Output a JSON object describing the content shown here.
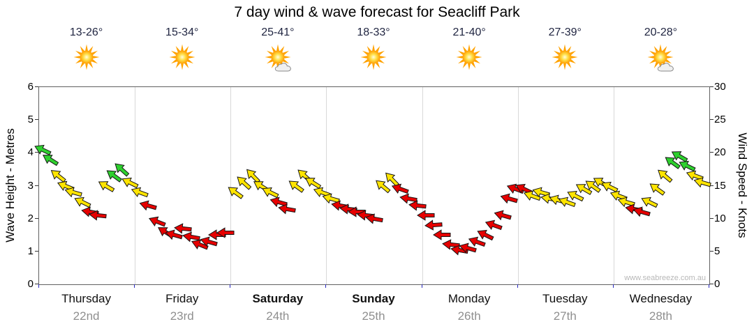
{
  "title": "7 day wind & wave forecast for Seacliff Park",
  "watermark": "www.seabreeze.com.au",
  "axes": {
    "left": {
      "title": "Wave Height - Metres",
      "ticks": [
        0,
        1,
        2,
        3,
        4,
        5,
        6
      ],
      "max": 6
    },
    "right": {
      "title": "Wind Speed - Knots",
      "ticks": [
        0,
        5,
        10,
        15,
        20,
        25,
        30
      ],
      "max": 30
    }
  },
  "days": [
    {
      "name": "Thursday",
      "date": "22nd",
      "temp": "13-26°",
      "icon": "sun",
      "weekend_bold": false
    },
    {
      "name": "Friday",
      "date": "23rd",
      "temp": "15-34°",
      "icon": "sun",
      "weekend_bold": false
    },
    {
      "name": "Saturday",
      "date": "24th",
      "temp": "25-41°",
      "icon": "sun-cloud",
      "weekend_bold": true
    },
    {
      "name": "Sunday",
      "date": "25th",
      "temp": "18-33°",
      "icon": "sun",
      "weekend_bold": true
    },
    {
      "name": "Monday",
      "date": "26th",
      "temp": "21-40°",
      "icon": "sun",
      "weekend_bold": false
    },
    {
      "name": "Tuesday",
      "date": "27th",
      "temp": "27-39°",
      "icon": "sun",
      "weekend_bold": false
    },
    {
      "name": "Wednesday",
      "date": "28th",
      "temp": "20-28°",
      "icon": "sun-cloud",
      "weekend_bold": false
    }
  ],
  "colors": {
    "green": "#2ed02e",
    "yellow": "#ffe400",
    "red": "#e60000",
    "grid": "#d8d8d8",
    "axis": "#606060",
    "bottom_tick": "#2a2ac0",
    "date_text": "#8f8f8f"
  },
  "chart_data": {
    "type": "scatter",
    "subtype": "wind-arrow-timeline",
    "title": "7 day wind & wave forecast for Seacliff Park",
    "x_categories": [
      "Thursday 22nd",
      "Friday 23rd",
      "Saturday 24th",
      "Sunday 25th",
      "Monday 26th",
      "Tuesday 27th",
      "Wednesday 28th"
    ],
    "y_left": {
      "label": "Wave Height - Metres",
      "range": [
        0,
        6
      ]
    },
    "y_right": {
      "label": "Wind Speed - Knots",
      "range": [
        0,
        30
      ]
    },
    "grid": "vertical day separators only",
    "point_format": [
      "day_index",
      "fraction_of_day",
      "wind_knots",
      "arrow_color",
      "arrow_rotation_deg_cw_from_east"
    ],
    "points": [
      [
        0,
        0.04,
        20.5,
        "green",
        205
      ],
      [
        0,
        0.12,
        19,
        "green",
        212
      ],
      [
        0,
        0.2,
        16.5,
        "yellow",
        218
      ],
      [
        0,
        0.28,
        15,
        "yellow",
        202
      ],
      [
        0,
        0.36,
        14,
        "yellow",
        196
      ],
      [
        0,
        0.45,
        12.5,
        "yellow",
        206
      ],
      [
        0,
        0.53,
        11,
        "red",
        190
      ],
      [
        0,
        0.61,
        10.5,
        "red",
        186
      ],
      [
        0,
        0.7,
        15,
        "yellow",
        210
      ],
      [
        0,
        0.78,
        16.5,
        "green",
        216
      ],
      [
        0,
        0.86,
        17.5,
        "green",
        222
      ],
      [
        0,
        0.95,
        15.5,
        "yellow",
        206
      ],
      [
        1,
        0.05,
        14,
        "yellow",
        200
      ],
      [
        1,
        0.14,
        12,
        "red",
        196
      ],
      [
        1,
        0.23,
        9.5,
        "red",
        202
      ],
      [
        1,
        0.32,
        8,
        "red",
        212
      ],
      [
        1,
        0.41,
        7.5,
        "red",
        196
      ],
      [
        1,
        0.5,
        8.5,
        "red",
        186
      ],
      [
        1,
        0.59,
        7.2,
        "red",
        190
      ],
      [
        1,
        0.68,
        6,
        "red",
        202
      ],
      [
        1,
        0.77,
        6.5,
        "red",
        196
      ],
      [
        1,
        0.86,
        7.5,
        "red",
        180
      ],
      [
        1,
        0.95,
        7.8,
        "red",
        180
      ],
      [
        2,
        0.05,
        14,
        "yellow",
        216
      ],
      [
        2,
        0.14,
        15.5,
        "yellow",
        222
      ],
      [
        2,
        0.23,
        16.5,
        "yellow",
        226
      ],
      [
        2,
        0.32,
        15,
        "yellow",
        212
      ],
      [
        2,
        0.41,
        14,
        "yellow",
        206
      ],
      [
        2,
        0.5,
        12.5,
        "red",
        196
      ],
      [
        2,
        0.59,
        11.5,
        "red",
        190
      ],
      [
        2,
        0.68,
        15,
        "yellow",
        216
      ],
      [
        2,
        0.77,
        16.5,
        "yellow",
        222
      ],
      [
        2,
        0.86,
        15.5,
        "yellow",
        212
      ],
      [
        2,
        0.95,
        14,
        "yellow",
        200
      ],
      [
        3,
        0.05,
        13,
        "yellow",
        196
      ],
      [
        3,
        0.14,
        12,
        "red",
        190
      ],
      [
        3,
        0.23,
        11.5,
        "red",
        186
      ],
      [
        3,
        0.32,
        11,
        "red",
        180
      ],
      [
        3,
        0.41,
        10.5,
        "red",
        186
      ],
      [
        3,
        0.5,
        10,
        "red",
        190
      ],
      [
        3,
        0.59,
        15,
        "yellow",
        220
      ],
      [
        3,
        0.68,
        16,
        "yellow",
        226
      ],
      [
        3,
        0.77,
        14.5,
        "red",
        200
      ],
      [
        3,
        0.86,
        13,
        "red",
        190
      ],
      [
        3,
        0.95,
        12,
        "red",
        186
      ],
      [
        4,
        0.04,
        10.5,
        "red",
        180
      ],
      [
        4,
        0.12,
        9,
        "red",
        176
      ],
      [
        4,
        0.21,
        7.5,
        "red",
        180
      ],
      [
        4,
        0.3,
        6,
        "red",
        186
      ],
      [
        4,
        0.39,
        5.2,
        "red",
        190
      ],
      [
        4,
        0.48,
        5.5,
        "red",
        196
      ],
      [
        4,
        0.57,
        6.5,
        "red",
        200
      ],
      [
        4,
        0.66,
        7.5,
        "red",
        206
      ],
      [
        4,
        0.75,
        9,
        "red",
        200
      ],
      [
        4,
        0.84,
        10.5,
        "red",
        196
      ],
      [
        4,
        0.91,
        13,
        "red",
        196
      ],
      [
        4,
        0.97,
        14.5,
        "red",
        200
      ],
      [
        5,
        0.06,
        14.5,
        "red",
        206
      ],
      [
        5,
        0.15,
        13.5,
        "yellow",
        200
      ],
      [
        5,
        0.24,
        14,
        "yellow",
        196
      ],
      [
        5,
        0.33,
        13,
        "yellow",
        190
      ],
      [
        5,
        0.42,
        12.8,
        "yellow",
        196
      ],
      [
        5,
        0.51,
        12.5,
        "yellow",
        200
      ],
      [
        5,
        0.6,
        13.5,
        "yellow",
        206
      ],
      [
        5,
        0.69,
        14.5,
        "yellow",
        210
      ],
      [
        5,
        0.78,
        15,
        "yellow",
        216
      ],
      [
        5,
        0.87,
        15.5,
        "yellow",
        210
      ],
      [
        5,
        0.96,
        14.8,
        "yellow",
        206
      ],
      [
        6,
        0.05,
        13.5,
        "yellow",
        200
      ],
      [
        6,
        0.13,
        12.5,
        "yellow",
        196
      ],
      [
        6,
        0.21,
        11.5,
        "red",
        190
      ],
      [
        6,
        0.29,
        11,
        "red",
        196
      ],
      [
        6,
        0.37,
        12.5,
        "yellow",
        206
      ],
      [
        6,
        0.45,
        14.5,
        "yellow",
        216
      ],
      [
        6,
        0.53,
        16.5,
        "yellow",
        220
      ],
      [
        6,
        0.61,
        18.5,
        "green",
        216
      ],
      [
        6,
        0.69,
        19.5,
        "green",
        210
      ],
      [
        6,
        0.77,
        18,
        "green",
        206
      ],
      [
        6,
        0.85,
        16.5,
        "yellow",
        200
      ],
      [
        6,
        0.93,
        15.5,
        "yellow",
        196
      ]
    ]
  }
}
